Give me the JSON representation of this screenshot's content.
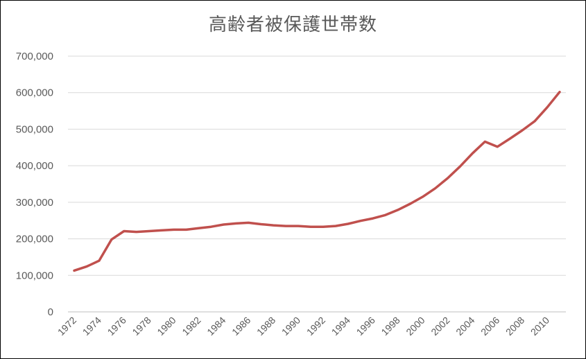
{
  "chart_data": {
    "type": "line",
    "title": "高齢者被保護世帯数",
    "xlabel": "",
    "ylabel": "",
    "ylim": [
      0,
      700000
    ],
    "yticks": [
      0,
      100000,
      200000,
      300000,
      400000,
      500000,
      600000,
      700000
    ],
    "ytick_labels": [
      "0",
      "100,000",
      "200,000",
      "300,000",
      "400,000",
      "500,000",
      "600,000",
      "700,000"
    ],
    "x": [
      1972,
      1973,
      1974,
      1975,
      1976,
      1977,
      1978,
      1979,
      1980,
      1981,
      1982,
      1983,
      1984,
      1985,
      1986,
      1987,
      1988,
      1989,
      1990,
      1991,
      1992,
      1993,
      1994,
      1995,
      1996,
      1997,
      1998,
      1999,
      2000,
      2001,
      2002,
      2003,
      2004,
      2005,
      2006,
      2007,
      2008,
      2009,
      2010,
      2011
    ],
    "xtick_labels": [
      "1972",
      "1974",
      "1976",
      "1978",
      "1980",
      "1982",
      "1984",
      "1986",
      "1988",
      "1990",
      "1992",
      "1994",
      "1996",
      "1998",
      "2000",
      "2002",
      "2004",
      "2006",
      "2008",
      "2010"
    ],
    "series": [
      {
        "values": [
          113000,
          124000,
          140000,
          198000,
          221000,
          219000,
          221000,
          223000,
          225000,
          225000,
          229000,
          233000,
          239000,
          242000,
          244000,
          240000,
          237000,
          235000,
          235000,
          233000,
          233000,
          235000,
          241000,
          249000,
          256000,
          265000,
          279000,
          296000,
          315000,
          338000,
          366000,
          398000,
          434000,
          466000,
          452000,
          474000,
          497000,
          522000,
          560000,
          602000
        ]
      }
    ],
    "line_color": "#c0504d",
    "grid": true,
    "legend": "none"
  }
}
